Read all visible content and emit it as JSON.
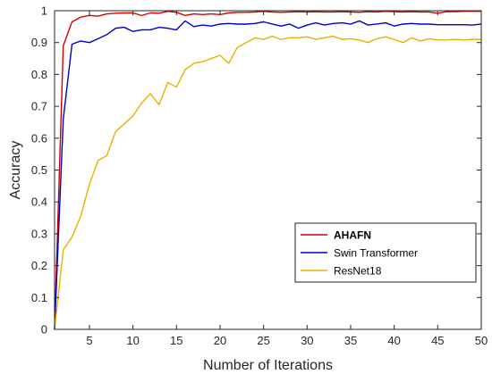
{
  "chart_data": {
    "type": "line",
    "title": "",
    "xlabel": "Number of Iterations",
    "ylabel": "Accuracy",
    "xlim": [
      1,
      50
    ],
    "ylim": [
      0,
      1
    ],
    "xticks": [
      5,
      10,
      15,
      20,
      25,
      30,
      35,
      40,
      45,
      50
    ],
    "xtick_labels": [
      "5",
      "10",
      "15",
      "20",
      "25",
      "30",
      "35",
      "40",
      "45",
      "50"
    ],
    "yticks": [
      0,
      0.1,
      0.2,
      0.3,
      0.4,
      0.5,
      0.6,
      0.7,
      0.8,
      0.9,
      1
    ],
    "ytick_labels": [
      "0",
      "0.1",
      "0.2",
      "0.3",
      "0.4",
      "0.5",
      "0.6",
      "0.7",
      "0.8",
      "0.9",
      "1"
    ],
    "grid": false,
    "legend_position": "lower-right",
    "x": [
      1,
      2,
      3,
      4,
      5,
      6,
      7,
      8,
      9,
      10,
      11,
      12,
      13,
      14,
      15,
      16,
      17,
      18,
      19,
      20,
      21,
      22,
      23,
      24,
      25,
      26,
      27,
      28,
      29,
      30,
      31,
      32,
      33,
      34,
      35,
      36,
      37,
      38,
      39,
      40,
      41,
      42,
      43,
      44,
      45,
      46,
      47,
      48,
      49,
      50
    ],
    "series": [
      {
        "name": "AHAFN",
        "color": "#d40000",
        "bold_legend": true,
        "values": [
          0.0,
          0.89,
          0.965,
          0.98,
          0.985,
          0.983,
          0.99,
          0.992,
          0.993,
          0.993,
          0.985,
          0.993,
          0.992,
          0.998,
          0.995,
          0.985,
          0.99,
          0.988,
          0.99,
          0.988,
          0.993,
          0.995,
          0.995,
          0.996,
          0.998,
          0.996,
          0.995,
          0.996,
          0.997,
          0.996,
          0.997,
          0.996,
          0.996,
          0.997,
          0.996,
          0.995,
          0.997,
          0.996,
          0.998,
          0.997,
          0.996,
          0.997,
          0.996,
          0.996,
          0.992,
          0.997,
          0.997,
          0.998,
          0.998,
          0.998
        ]
      },
      {
        "name": "Swin Transformer",
        "color": "#0000cc",
        "bold_legend": false,
        "values": [
          0.0,
          0.66,
          0.895,
          0.905,
          0.9,
          0.912,
          0.925,
          0.945,
          0.948,
          0.935,
          0.94,
          0.94,
          0.948,
          0.945,
          0.94,
          0.968,
          0.95,
          0.955,
          0.952,
          0.958,
          0.96,
          0.958,
          0.958,
          0.96,
          0.965,
          0.958,
          0.952,
          0.958,
          0.945,
          0.955,
          0.962,
          0.955,
          0.96,
          0.962,
          0.958,
          0.968,
          0.955,
          0.958,
          0.962,
          0.952,
          0.958,
          0.96,
          0.958,
          0.958,
          0.956,
          0.956,
          0.956,
          0.956,
          0.955,
          0.958
        ]
      },
      {
        "name": "ResNet18",
        "color": "#e8b000",
        "bold_legend": false,
        "values": [
          0.0,
          0.25,
          0.29,
          0.355,
          0.455,
          0.53,
          0.545,
          0.62,
          0.645,
          0.67,
          0.71,
          0.74,
          0.705,
          0.775,
          0.76,
          0.815,
          0.835,
          0.84,
          0.85,
          0.86,
          0.835,
          0.885,
          0.9,
          0.915,
          0.91,
          0.92,
          0.91,
          0.915,
          0.915,
          0.918,
          0.91,
          0.915,
          0.92,
          0.91,
          0.912,
          0.908,
          0.9,
          0.912,
          0.918,
          0.91,
          0.9,
          0.915,
          0.905,
          0.912,
          0.908,
          0.908,
          0.91,
          0.908,
          0.91,
          0.91
        ]
      }
    ]
  }
}
